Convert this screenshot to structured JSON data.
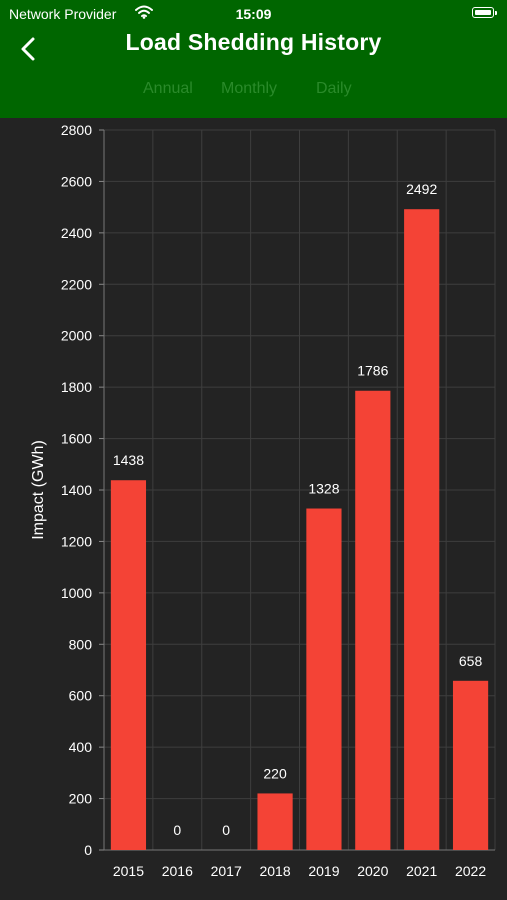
{
  "status_bar": {
    "carrier": "Network Provider",
    "time": "15:09"
  },
  "header": {
    "title": "Load Shedding History",
    "back_icon": "chevron-left-icon"
  },
  "tabs": [
    {
      "label": "Annual"
    },
    {
      "label": "Monthly"
    },
    {
      "label": "Daily"
    }
  ],
  "colors": {
    "header_bg": "#006600",
    "bar": "#f44336",
    "background": "#232323",
    "tab_text": "#2a8a2a"
  },
  "chart_data": {
    "type": "bar",
    "categories": [
      "2015",
      "2016",
      "2017",
      "2018",
      "2019",
      "2020",
      "2021",
      "2022"
    ],
    "values": [
      1438,
      0,
      0,
      220,
      1328,
      1786,
      2492,
      658
    ],
    "data_labels": [
      "1438",
      "0",
      "0",
      "220",
      "1328",
      "1786",
      "2492",
      "658"
    ],
    "ylabel": "Impact (GWh)",
    "xlabel": "",
    "ylim": [
      0,
      2800
    ],
    "yticks": [
      0,
      200,
      400,
      600,
      800,
      1000,
      1200,
      1400,
      1600,
      1800,
      2000,
      2200,
      2400,
      2600,
      2800
    ],
    "grid": true
  }
}
